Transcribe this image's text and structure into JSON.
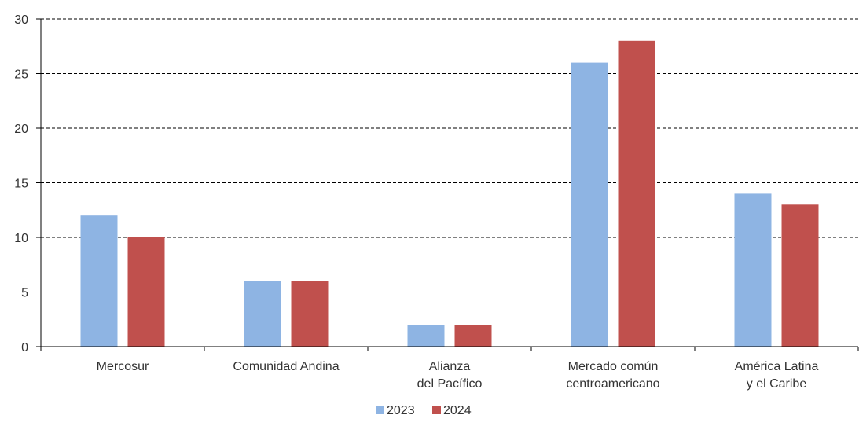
{
  "chart_data": {
    "type": "bar",
    "title": "",
    "xlabel": "",
    "ylabel": "",
    "categories": [
      [
        "Mercosur"
      ],
      [
        "Comunidad Andina"
      ],
      [
        "Alianza",
        "del Pacífico"
      ],
      [
        "Mercado común",
        "centroamericano"
      ],
      [
        "América Latina",
        "y el Caribe"
      ]
    ],
    "series": [
      {
        "name": "2023",
        "color": "#8EB4E3",
        "values": [
          12,
          6,
          2,
          26,
          14
        ]
      },
      {
        "name": "2024",
        "color": "#C0504D",
        "values": [
          10,
          6,
          2,
          28,
          13
        ]
      }
    ],
    "ylim": [
      0,
      30
    ],
    "yticks": [
      0,
      5,
      10,
      15,
      20,
      25,
      30
    ],
    "grid": "horizontal-dashed",
    "legend_position": "bottom-center"
  }
}
